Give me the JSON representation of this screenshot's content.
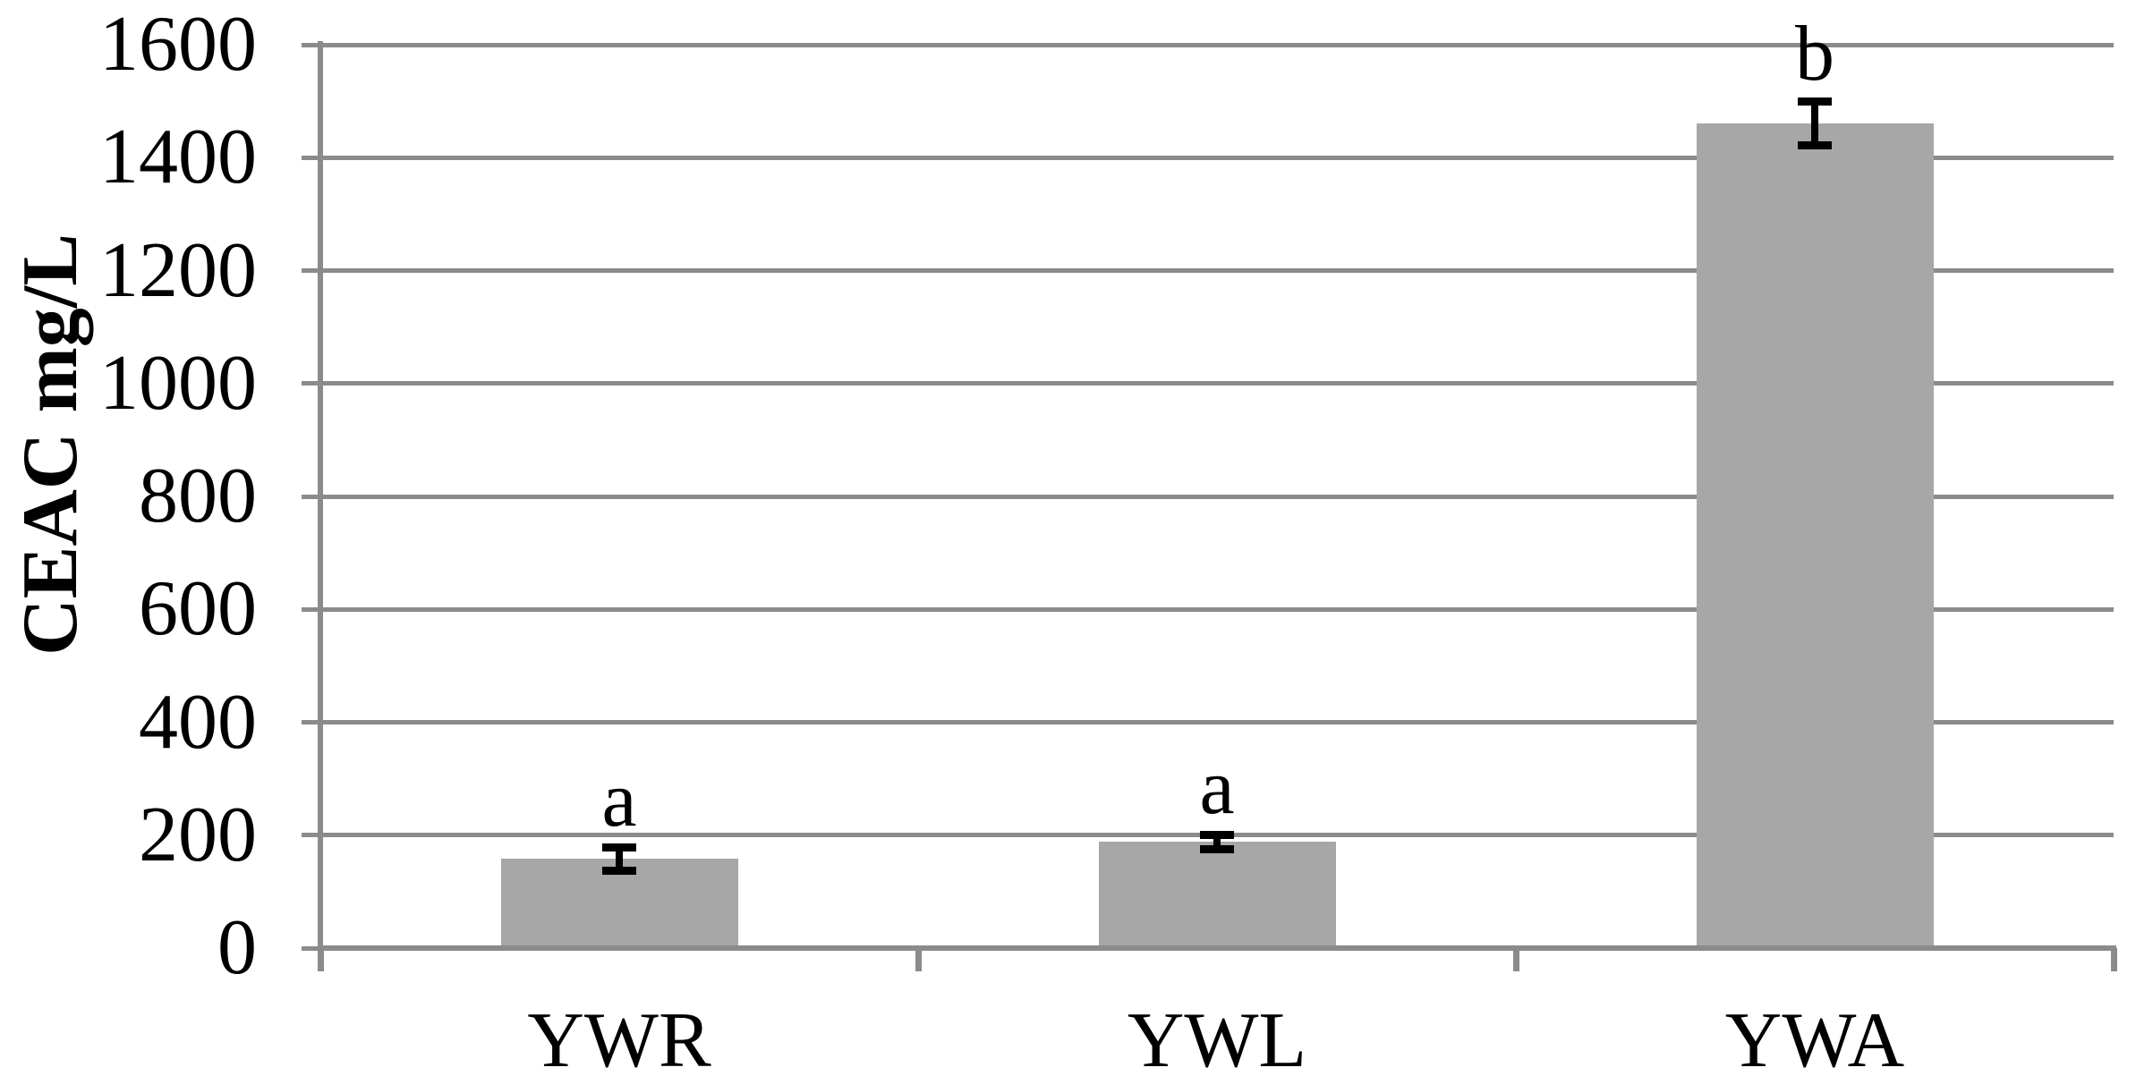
{
  "chart_data": {
    "type": "bar",
    "title": "",
    "ylabel": "CEAC mg/L",
    "xlabel": "",
    "categories": [
      "YWR",
      "YWL",
      "YWA"
    ],
    "values": [
      158,
      188,
      1461
    ],
    "errors": [
      21,
      13,
      39
    ],
    "bar_labels": [
      "a",
      "a",
      "b"
    ],
    "ylim": [
      0,
      1600
    ],
    "yticks": [
      0,
      200,
      400,
      600,
      800,
      1000,
      1200,
      1400,
      1600
    ],
    "ytick_step": 200,
    "grid": "horizontal-only",
    "legend": "none",
    "colors": {
      "bar_fill": "#a7a7a7",
      "gridline": "#8b8b8b",
      "axis": "#8b8b8b",
      "error_bar": "#000000",
      "text": "#000000",
      "background": "#ffffff"
    }
  }
}
